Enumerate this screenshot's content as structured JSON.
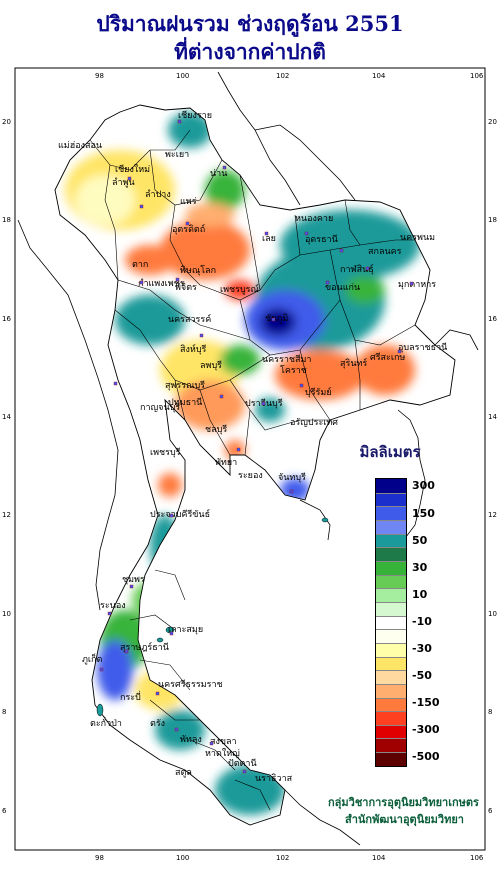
{
  "header": {
    "title_line1": "ปริมาณฝนรวม ช่วงฤดูร้อน 2551",
    "title_line2": "ที่ต่างจากค่าปกติ"
  },
  "axes": {
    "lon_ticks": [
      "98",
      "100",
      "102",
      "104",
      "106"
    ],
    "lat_ticks": [
      "20",
      "18",
      "16",
      "14",
      "12",
      "10",
      "8",
      "6"
    ]
  },
  "provinces": [
    "เชียงราย",
    "แม่ฮ่องสอน",
    "เชียงใหม่",
    "พะเยา",
    "น่าน",
    "ลำพูน",
    "ลำปาง",
    "แพร่",
    "อุตรดิตถ์",
    "หนองคาย",
    "อุดรธานี",
    "สกลนคร",
    "นครพนม",
    "กาฬสินธุ์",
    "มุกดาหาร",
    "ขอนแก่น",
    "เลย",
    "ตาก",
    "พิษณุโลก",
    "กำแพงเพชร",
    "เพชรบูรณ์",
    "พิจิตร",
    "นครสวรรค์",
    "ชัยภูมิ",
    "อุบลราชธานี",
    "สุรินทร์",
    "ศรีสะเกษ",
    "นครราชสีมา",
    "ลพบุรี",
    "สิงห์บุรี",
    "สุพรรณบุรี",
    "ปทุมธานี",
    "กาญจนบุรี",
    "โคราช",
    "บุรีรัมย์",
    "ปราจีนบุรี",
    "อรัญประเทศ",
    "ชลบุรี",
    "พัทยา",
    "ระยอง",
    "จันทบุรี",
    "เพชรบุรี",
    "ประจวบคีรีขันธ์",
    "ชุมพร",
    "ระนอง",
    "เกาะสมุย",
    "สุราษฎร์ธานี",
    "ภูเก็ต",
    "นครศรีธรรมราช",
    "กระบี่",
    "ตรัง",
    "พัทลุง",
    "สงขลา",
    "ปัตตานี",
    "นราธิวาส",
    "สตูล",
    "หาดใหญ่",
    "ตะกั่วป่า"
  ],
  "legend": {
    "title": "มิลลิเมตร",
    "labels": [
      "300",
      "150",
      "50",
      "30",
      "10",
      "-10",
      "-30",
      "-50",
      "-150",
      "-300",
      "-500"
    ],
    "colors": [
      "#00008b",
      "#1a2fcc",
      "#3f5bea",
      "#6f86f3",
      "#1a9a9a",
      "#1f7a4a",
      "#37b33a",
      "#66cc55",
      "#a6ee9f",
      "#d6f8d0",
      "#ffffff",
      "#fffff0",
      "#ffffaa",
      "#ffe566",
      "#ffd9a0",
      "#ffae70",
      "#ff7a3c",
      "#ff4020",
      "#e00000",
      "#a00000",
      "#5c0000"
    ]
  },
  "credit": {
    "line1": "กลุ่มวิชาการอุตุนิยมวิทยาเกษตร",
    "line2": "สำนักพัฒนาอุตุนิยมวิทยา"
  },
  "map_data": {
    "units": "มิลลิเมตร",
    "regions": [
      {
        "name": "ขอนแก่น-ชัยภูมิ",
        "value": "50 to 150"
      },
      {
        "name": "หนองคาย-นครพนม",
        "value": "30 to 50"
      },
      {
        "name": "ตาก-พิษณุโลก",
        "value": "-30 to -50"
      },
      {
        "name": "สุรินทร์-ศรีสะเกษ",
        "value": "-30 to -50"
      },
      {
        "name": "ภูเก็ต-ระนอง",
        "value": "150 to 300"
      }
    ]
  }
}
